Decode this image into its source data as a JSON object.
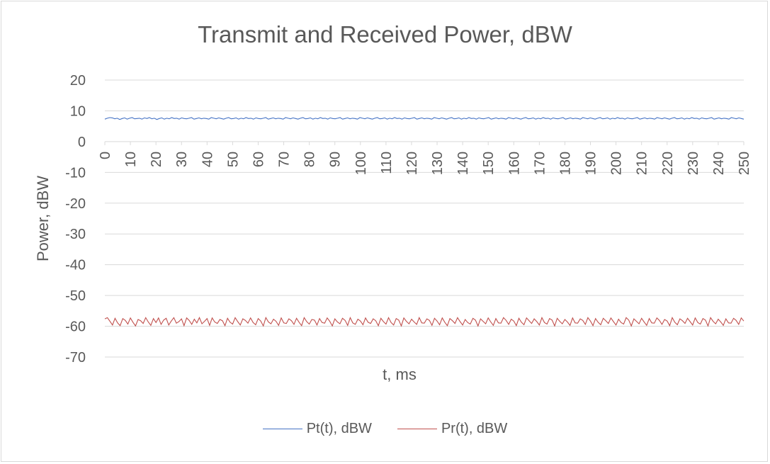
{
  "chart_data": {
    "type": "line",
    "title": "Transmit and Received Power, dBW",
    "xlabel": "t, ms",
    "ylabel": "Power, dBW",
    "xlim": [
      0,
      250
    ],
    "ylim": [
      -70,
      20
    ],
    "x_ticks": [
      0,
      10,
      20,
      30,
      40,
      50,
      60,
      70,
      80,
      90,
      100,
      110,
      120,
      130,
      140,
      150,
      160,
      170,
      180,
      190,
      200,
      210,
      220,
      230,
      240,
      250
    ],
    "y_ticks": [
      20,
      10,
      0,
      -10,
      -20,
      -30,
      -40,
      -50,
      -60,
      -70
    ],
    "grid": true,
    "legend_position": "bottom",
    "series": [
      {
        "name": "Pt(t), dBW",
        "color": "#4472C4",
        "mean": 7.5,
        "jitter": 0.6,
        "values": [
          7.3,
          7.6,
          7.8,
          7.7,
          7.4,
          7.6,
          7.2,
          7.5,
          7.7,
          7.3,
          7.6,
          7.8,
          7.4,
          7.5,
          7.6,
          7.3,
          7.7,
          7.5,
          7.8,
          7.4,
          7.6,
          7.2,
          7.5,
          7.7,
          7.3,
          7.6,
          7.4,
          7.8,
          7.5,
          7.6,
          7.3,
          7.7,
          7.5,
          7.4,
          7.6,
          7.8,
          7.3,
          7.5,
          7.7,
          7.4,
          7.6,
          7.5,
          7.3,
          7.8,
          7.6,
          7.4,
          7.7,
          7.5,
          7.3,
          7.6,
          7.8,
          7.4,
          7.5,
          7.7,
          7.3,
          7.6,
          7.4,
          7.8,
          7.5,
          7.6,
          7.3,
          7.7,
          7.5,
          7.4,
          7.6,
          7.8,
          7.3,
          7.5,
          7.7,
          7.4,
          7.6,
          7.5,
          7.3,
          7.8,
          7.6,
          7.4,
          7.7,
          7.5,
          7.3,
          7.6,
          7.8,
          7.4,
          7.5,
          7.7,
          7.3,
          7.6,
          7.4,
          7.8,
          7.5,
          7.6,
          7.3,
          7.7,
          7.5,
          7.4,
          7.6,
          7.8,
          7.3,
          7.5,
          7.7,
          7.4,
          7.6,
          7.5,
          7.3,
          7.8,
          7.6,
          7.4,
          7.7,
          7.5,
          7.3,
          7.6,
          7.8,
          7.4,
          7.5,
          7.7,
          7.3,
          7.6,
          7.4,
          7.8,
          7.5,
          7.6,
          7.3,
          7.7,
          7.5,
          7.4,
          7.6,
          7.8,
          7.3,
          7.5,
          7.7,
          7.4,
          7.6,
          7.5,
          7.3,
          7.8,
          7.6,
          7.4,
          7.7,
          7.5,
          7.3,
          7.6,
          7.8,
          7.4,
          7.5,
          7.7,
          7.3,
          7.6,
          7.4,
          7.8,
          7.5,
          7.6,
          7.3,
          7.7,
          7.5,
          7.4,
          7.6,
          7.8,
          7.3,
          7.5,
          7.7,
          7.4,
          7.6,
          7.5,
          7.3,
          7.8,
          7.6,
          7.4,
          7.7,
          7.5,
          7.3,
          7.6,
          7.8,
          7.4,
          7.5,
          7.7,
          7.3,
          7.6,
          7.4,
          7.8,
          7.5,
          7.6,
          7.3,
          7.7,
          7.5,
          7.4,
          7.6,
          7.8,
          7.3,
          7.5,
          7.7,
          7.4,
          7.6,
          7.5,
          7.3,
          7.8,
          7.6,
          7.4,
          7.7,
          7.5,
          7.3,
          7.6,
          7.8,
          7.4,
          7.5,
          7.7,
          7.3,
          7.6,
          7.4,
          7.8,
          7.5,
          7.6,
          7.3,
          7.7,
          7.5,
          7.4,
          7.6,
          7.8,
          7.3,
          7.5,
          7.7,
          7.4,
          7.6,
          7.5,
          7.3,
          7.8,
          7.6,
          7.4,
          7.7,
          7.5,
          7.3,
          7.6,
          7.8,
          7.4,
          7.5,
          7.7,
          7.3,
          7.6,
          7.4,
          7.8,
          7.5,
          7.6,
          7.3,
          7.7,
          7.5,
          7.4,
          7.6,
          7.8,
          7.3,
          7.5,
          7.7,
          7.4,
          7.6,
          7.5,
          7.3,
          7.8,
          7.6,
          7.4,
          7.7,
          7.5,
          7.3
        ]
      },
      {
        "name": "Pr(t), dBW",
        "color": "#C0504D",
        "mean": -58.3,
        "jitter": 1.5,
        "values": [
          -57.6,
          -57.2,
          -58.4,
          -59.6,
          -57.4,
          -58.9,
          -59.8,
          -57.5,
          -58.1,
          -59.3,
          -57.3,
          -58.7,
          -59.9,
          -57.8,
          -58.2,
          -59.1,
          -57.2,
          -58.6,
          -59.7,
          -57.5,
          -58.8,
          -57.3,
          -59.4,
          -58.0,
          -57.4,
          -59.6,
          -58.3,
          -57.2,
          -59.0,
          -58.5,
          -57.6,
          -59.8,
          -57.3,
          -58.1,
          -59.4,
          -57.7,
          -58.9,
          -57.2,
          -59.2,
          -58.4,
          -57.5,
          -59.7,
          -57.3,
          -58.6,
          -59.1,
          -57.8,
          -58.2,
          -59.8,
          -57.4,
          -58.7,
          -59.3,
          -57.2,
          -58.5,
          -59.6,
          -57.6,
          -58.1,
          -59.0,
          -57.3,
          -58.8,
          -59.5,
          -57.5,
          -58.3,
          -59.9,
          -57.2,
          -58.6,
          -59.2,
          -57.7,
          -58.4,
          -59.7,
          -57.3,
          -58.9,
          -59.1,
          -57.6,
          -58.2,
          -59.4,
          -57.4,
          -58.7,
          -59.8,
          -57.2,
          -58.5,
          -59.3,
          -57.8,
          -58.0,
          -59.6,
          -57.5,
          -58.8,
          -59.0,
          -57.3,
          -58.4,
          -59.9,
          -57.6,
          -58.6,
          -59.2,
          -57.4,
          -58.1,
          -59.7,
          -57.2,
          -58.9,
          -59.4,
          -57.7,
          -58.3,
          -59.5,
          -57.3,
          -58.7,
          -59.1,
          -57.6,
          -58.2,
          -59.8,
          -57.4,
          -58.5,
          -59.3,
          -57.2,
          -58.8,
          -59.6,
          -57.5,
          -58.0,
          -59.9,
          -57.3,
          -58.4,
          -59.2,
          -57.7,
          -58.6,
          -59.4,
          -57.2,
          -58.9,
          -59.0,
          -57.6,
          -58.1,
          -59.7,
          -57.4,
          -58.3,
          -59.5,
          -57.3,
          -58.7,
          -59.8,
          -57.5,
          -58.2,
          -59.1,
          -57.2,
          -58.5,
          -59.6,
          -57.8,
          -58.8,
          -59.3,
          -57.4,
          -58.0,
          -59.9,
          -57.6,
          -58.4,
          -59.2,
          -57.3,
          -58.6,
          -59.7,
          -57.5,
          -58.9,
          -59.0,
          -57.2,
          -58.1,
          -59.4,
          -57.7,
          -58.3,
          -59.8,
          -57.4,
          -58.7,
          -59.5,
          -57.3,
          -58.2,
          -59.1,
          -57.6,
          -58.5,
          -59.6,
          -57.2,
          -58.8,
          -59.3,
          -57.5,
          -58.0,
          -59.9,
          -57.4,
          -58.4,
          -59.2,
          -57.8,
          -58.6,
          -59.7,
          -57.3,
          -58.9,
          -59.0,
          -57.6,
          -58.1,
          -59.4,
          -57.2,
          -58.3,
          -59.8,
          -57.5,
          -58.7,
          -59.5,
          -57.4,
          -58.2,
          -59.1,
          -57.3,
          -58.5,
          -59.6,
          -57.7,
          -58.8,
          -59.3,
          -57.2,
          -58.0,
          -59.9,
          -57.6,
          -58.4,
          -59.2,
          -57.4,
          -58.6,
          -59.7,
          -57.5,
          -58.9,
          -59.0,
          -57.3,
          -58.1,
          -59.4,
          -57.8,
          -58.3,
          -59.8,
          -57.2,
          -58.7,
          -59.5,
          -57.6,
          -58.2,
          -59.1,
          -57.4,
          -58.5,
          -59.6,
          -57.3,
          -58.8,
          -59.3,
          -57.5,
          -58.0,
          -59.9,
          -57.2,
          -58.4,
          -59.2,
          -57.7,
          -58.6,
          -59.7,
          -57.6,
          -58.9,
          -59.0,
          -57.4,
          -58.1,
          -59.4,
          -57.3,
          -58.3
        ]
      }
    ]
  }
}
